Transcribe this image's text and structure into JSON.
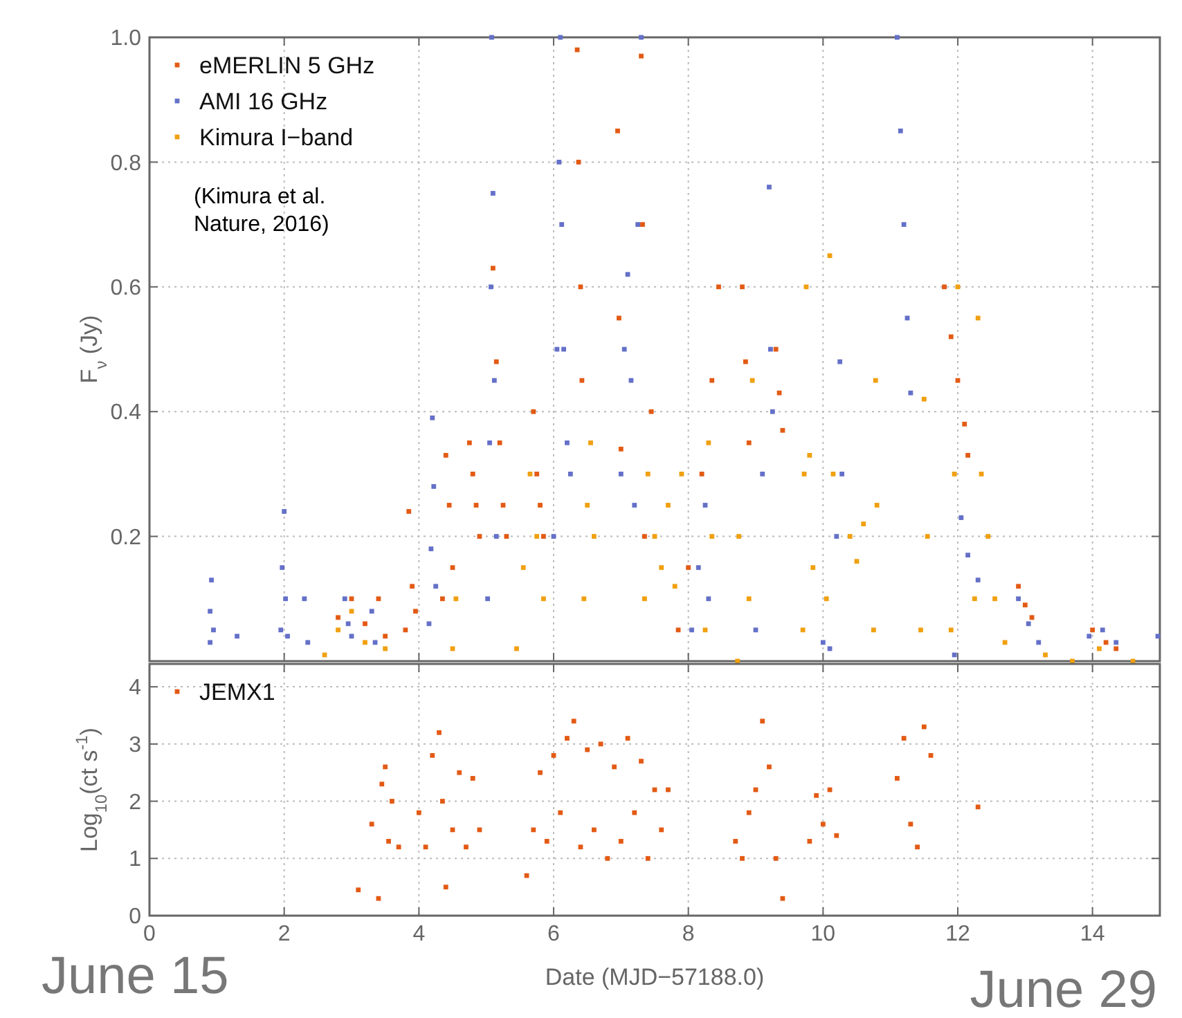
{
  "chart_data": [
    {
      "type": "scatter",
      "ylabel": "F$_{ν}$ (Jy)",
      "xlim": [
        0,
        15
      ],
      "xticks": [
        0,
        2,
        4,
        6,
        8,
        10,
        12,
        14
      ],
      "ylim": [
        0,
        1
      ],
      "yticks": [
        0.2,
        0.4,
        0.6,
        0.8,
        {
          "value": 1,
          "label": "1.0"
        }
      ],
      "tick_labels": "y",
      "grid": true,
      "legend": "top left",
      "marker": "square",
      "annotations": [
        "(Kimura et al.\nNature, 2016)"
      ],
      "series": [
        {
          "name": "eMERLIN 5 GHz",
          "color": "#e35a14",
          "x": [
            2.8,
            3.0,
            3.2,
            3.4,
            3.5,
            3.8,
            3.85,
            3.9,
            3.95,
            4.35,
            4.4,
            4.45,
            4.5,
            4.75,
            4.8,
            4.85,
            4.9,
            5.1,
            5.15,
            5.2,
            5.25,
            5.3,
            5.7,
            5.75,
            5.8,
            5.85,
            6.35,
            6.37,
            6.4,
            6.42,
            6.95,
            6.97,
            7.0,
            7.3,
            7.32,
            7.35,
            7.45,
            7.85,
            8.0,
            8.2,
            8.35,
            8.45,
            8.8,
            8.85,
            8.9,
            9.3,
            9.35,
            9.4,
            11.8,
            11.9,
            12.0,
            12.1,
            12.15,
            12.9,
            13.0,
            13.1,
            14.0,
            14.2,
            14.35
          ],
          "values": [
            0.07,
            0.1,
            0.06,
            0.1,
            0.04,
            0.05,
            0.24,
            0.12,
            0.08,
            0.1,
            0.33,
            0.25,
            0.15,
            0.35,
            0.3,
            0.25,
            0.2,
            0.63,
            0.48,
            0.35,
            0.25,
            0.2,
            0.4,
            0.3,
            0.25,
            0.2,
            0.98,
            0.8,
            0.6,
            0.45,
            0.85,
            0.55,
            0.34,
            0.97,
            0.7,
            0.2,
            0.4,
            0.05,
            0.15,
            0.3,
            0.45,
            0.6,
            0.6,
            0.48,
            0.35,
            0.5,
            0.43,
            0.37,
            0.6,
            0.52,
            0.45,
            0.38,
            0.33,
            0.12,
            0.09,
            0.07,
            0.05,
            0.03,
            0.02
          ]
        },
        {
          "name": "AMI 16 GHz",
          "color": "#6470c8",
          "x": [
            0.9,
            0.9,
            0.92,
            0.95,
            1.3,
            1.95,
            1.97,
            2.0,
            2.02,
            2.05,
            2.3,
            2.35,
            2.9,
            2.95,
            3.0,
            3.3,
            3.35,
            4.15,
            4.18,
            4.2,
            4.22,
            4.25,
            5.02,
            5.05,
            5.07,
            5.08,
            5.1,
            5.12,
            5.15,
            6.0,
            6.05,
            6.08,
            6.1,
            6.12,
            6.15,
            6.2,
            6.25,
            7.0,
            7.05,
            7.1,
            7.15,
            7.2,
            7.25,
            7.3,
            8.05,
            8.15,
            8.25,
            8.3,
            9.0,
            9.1,
            9.2,
            9.22,
            9.25,
            10.0,
            10.1,
            10.2,
            10.25,
            10.28,
            11.1,
            11.15,
            11.2,
            11.25,
            11.3,
            11.95,
            12.05,
            12.15,
            12.3,
            12.9,
            13.05,
            13.2,
            13.95,
            14.15,
            14.35,
            14.97
          ],
          "values": [
            0.03,
            0.08,
            0.13,
            0.05,
            0.04,
            0.05,
            0.15,
            0.24,
            0.1,
            0.04,
            0.1,
            0.03,
            0.1,
            0.06,
            0.04,
            0.08,
            0.03,
            0.06,
            0.18,
            0.39,
            0.28,
            0.12,
            0.1,
            0.35,
            0.6,
            1.0,
            0.75,
            0.45,
            0.2,
            0.2,
            0.5,
            0.8,
            1.0,
            0.7,
            0.5,
            0.35,
            0.3,
            0.3,
            0.5,
            0.62,
            0.45,
            0.25,
            0.7,
            1.0,
            0.05,
            0.15,
            0.25,
            0.1,
            0.05,
            0.3,
            0.76,
            0.5,
            0.4,
            0.03,
            0.02,
            0.2,
            0.48,
            0.3,
            1.0,
            0.85,
            0.7,
            0.55,
            0.43,
            0.01,
            0.23,
            0.17,
            0.13,
            0.1,
            0.06,
            0.03,
            0.04,
            0.05,
            0.03,
            0.04
          ]
        },
        {
          "name": "Kimura I−band",
          "color": "#f0a010",
          "x": [
            2.6,
            2.8,
            3.0,
            3.2,
            3.5,
            4.5,
            4.55,
            5.45,
            5.55,
            5.65,
            5.75,
            5.85,
            6.45,
            6.5,
            6.55,
            6.6,
            7.35,
            7.4,
            7.5,
            7.6,
            7.7,
            7.8,
            7.9,
            8.25,
            8.3,
            8.35,
            8.73,
            8.75,
            8.9,
            8.95,
            9.7,
            9.72,
            9.75,
            9.8,
            9.85,
            10.05,
            10.1,
            10.15,
            10.4,
            10.5,
            10.6,
            10.75,
            10.78,
            10.8,
            11.45,
            11.5,
            11.55,
            11.9,
            11.95,
            12.0,
            12.25,
            12.3,
            12.35,
            12.45,
            12.55,
            12.7,
            13.3,
            13.7,
            14.1,
            14.6
          ],
          "values": [
            0.01,
            0.05,
            0.08,
            0.03,
            0.02,
            0.02,
            0.1,
            0.02,
            0.15,
            0.3,
            0.2,
            0.1,
            0.1,
            0.25,
            0.35,
            0.2,
            0.1,
            0.3,
            0.2,
            0.15,
            0.25,
            0.12,
            0.3,
            0.05,
            0.35,
            0.2,
            0.0,
            0.2,
            0.1,
            0.45,
            0.05,
            0.3,
            0.6,
            0.33,
            0.15,
            0.1,
            0.65,
            0.3,
            0.2,
            0.16,
            0.22,
            0.05,
            0.45,
            0.25,
            0.05,
            0.42,
            0.2,
            0.05,
            0.3,
            0.6,
            0.1,
            0.55,
            0.3,
            0.2,
            0.1,
            0.03,
            0.01,
            0.0,
            0.02,
            0.0
          ]
        }
      ]
    },
    {
      "type": "scatter",
      "xlabel": "Date (MJD−57188.0)",
      "ylabel": "Log$_{10}$(ct s$^{-1}$)",
      "xlim": [
        0,
        15
      ],
      "xticks": [
        0,
        2,
        4,
        6,
        8,
        10,
        12,
        14
      ],
      "ylim": [
        0,
        4.4
      ],
      "yticks": [
        0,
        1,
        2,
        3,
        4
      ],
      "grid": true,
      "legend": "top left",
      "marker": "square",
      "annotations": [
        "June 15",
        "June 29"
      ],
      "series": [
        {
          "name": "JEMX1",
          "color": "#e35a14",
          "x": [
            3.1,
            3.3,
            3.4,
            3.45,
            3.5,
            3.55,
            3.6,
            3.7,
            4.0,
            4.1,
            4.2,
            4.3,
            4.35,
            4.4,
            4.5,
            4.6,
            4.7,
            4.8,
            4.9,
            5.6,
            5.7,
            5.8,
            5.9,
            6.0,
            6.1,
            6.2,
            6.3,
            6.4,
            6.5,
            6.6,
            6.7,
            6.8,
            6.9,
            7.0,
            7.1,
            7.2,
            7.3,
            7.4,
            7.5,
            7.6,
            7.7,
            8.7,
            8.8,
            8.9,
            9.0,
            9.1,
            9.2,
            9.3,
            9.4,
            9.8,
            9.9,
            10.0,
            10.1,
            10.2,
            11.1,
            11.2,
            11.3,
            11.4,
            11.5,
            11.6,
            12.3
          ],
          "values": [
            0.45,
            1.6,
            0.3,
            2.3,
            2.6,
            1.3,
            2.0,
            1.2,
            1.8,
            1.2,
            2.8,
            3.2,
            2.0,
            0.5,
            1.5,
            2.5,
            1.2,
            2.4,
            1.5,
            0.7,
            1.5,
            2.5,
            1.3,
            2.8,
            1.8,
            3.1,
            3.4,
            1.2,
            2.9,
            1.5,
            3.0,
            1.0,
            2.6,
            1.3,
            3.1,
            1.8,
            2.7,
            1.0,
            2.2,
            1.5,
            2.2,
            1.3,
            1.0,
            1.8,
            2.2,
            3.4,
            2.6,
            1.0,
            0.3,
            1.3,
            2.1,
            1.6,
            2.2,
            1.4,
            2.4,
            3.1,
            1.6,
            1.2,
            3.3,
            2.8,
            1.9
          ]
        }
      ]
    }
  ]
}
